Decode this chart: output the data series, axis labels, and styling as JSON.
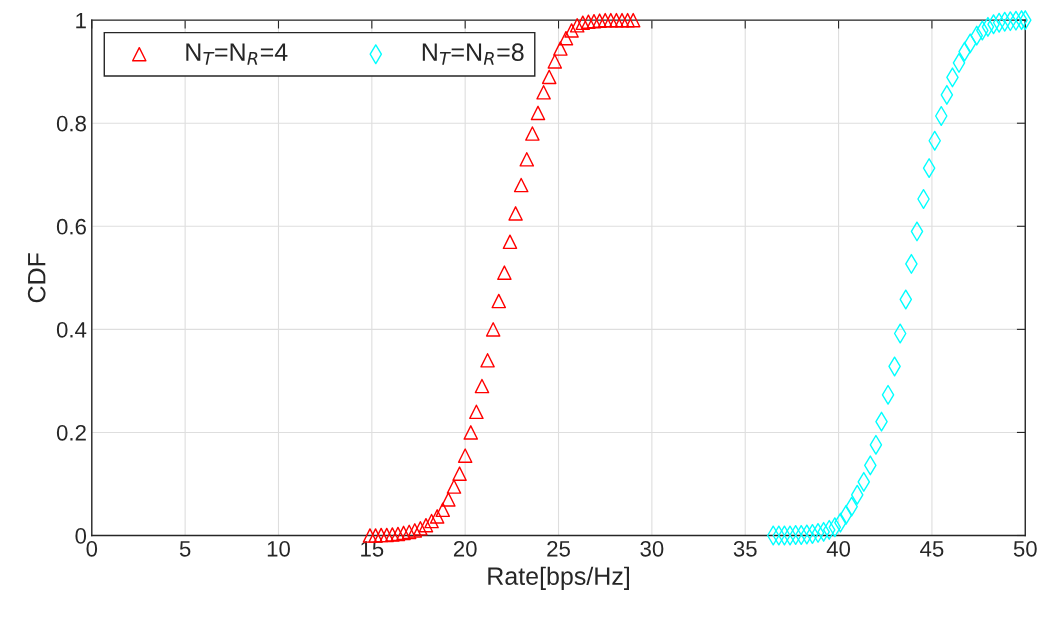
{
  "chart_data": {
    "type": "scatter",
    "xlabel": "Rate[bps/Hz]",
    "ylabel": "CDF",
    "xlim": [
      0,
      50
    ],
    "xticks": [
      0,
      5,
      10,
      15,
      20,
      25,
      30,
      35,
      40,
      45,
      50
    ],
    "ylim": [
      0,
      1
    ],
    "yticks": [
      0,
      0.2,
      0.4,
      0.6,
      0.8,
      1
    ],
    "grid": true,
    "legend": "top left",
    "series": [
      {
        "name": "N$_{T}$=N$_{R}$=4",
        "color": "#ff0000",
        "marker": "triangle",
        "x": [
          14.9,
          15.2,
          15.5,
          15.8,
          16.1,
          16.4,
          16.7,
          17.0,
          17.3,
          17.6,
          17.9,
          18.2,
          18.5,
          18.8,
          19.1,
          19.4,
          19.7,
          20.0,
          20.3,
          20.6,
          20.9,
          21.2,
          21.5,
          21.8,
          22.1,
          22.4,
          22.7,
          23.0,
          23.3,
          23.6,
          23.9,
          24.2,
          24.5,
          24.8,
          25.1,
          25.4,
          25.7,
          26.0,
          26.3,
          26.6,
          26.9,
          27.2,
          27.5,
          27.8,
          28.1,
          28.4,
          28.7,
          29.0
        ],
        "values": [
          0,
          0,
          0.001,
          0.001,
          0.002,
          0.003,
          0.005,
          0.007,
          0.01,
          0.014,
          0.02,
          0.028,
          0.037,
          0.05,
          0.07,
          0.095,
          0.12,
          0.155,
          0.2,
          0.24,
          0.29,
          0.34,
          0.4,
          0.455,
          0.51,
          0.57,
          0.625,
          0.68,
          0.73,
          0.78,
          0.82,
          0.86,
          0.89,
          0.92,
          0.945,
          0.965,
          0.98,
          0.99,
          0.995,
          0.997,
          0.998,
          0.999,
          1,
          1,
          1,
          1,
          1,
          1
        ]
      },
      {
        "name": "N$_{T}$=N$_{R}$=8",
        "color": "#00ffff",
        "marker": "diamond",
        "x": [
          36.5,
          36.8,
          37.1,
          37.4,
          37.7,
          38.0,
          38.3,
          38.6,
          38.9,
          39.2,
          39.5,
          39.8,
          40.1,
          40.4,
          40.7,
          41.0,
          41.35,
          41.7,
          42.0,
          42.3,
          42.65,
          43.0,
          43.3,
          43.6,
          43.9,
          44.2,
          44.55,
          44.85,
          45.15,
          45.5,
          45.8,
          46.1,
          46.45,
          46.75,
          47.05,
          47.4,
          47.7,
          48.0,
          48.3,
          48.6,
          48.9,
          49.2,
          49.5,
          49.8,
          50.0
        ],
        "values": [
          0,
          0,
          0,
          0,
          0.001,
          0.001,
          0.002,
          0.003,
          0.005,
          0.007,
          0.011,
          0.016,
          0.025,
          0.04,
          0.056,
          0.079,
          0.104,
          0.136,
          0.176,
          0.221,
          0.273,
          0.328,
          0.392,
          0.458,
          0.527,
          0.59,
          0.653,
          0.713,
          0.766,
          0.814,
          0.855,
          0.889,
          0.917,
          0.939,
          0.955,
          0.97,
          0.98,
          0.987,
          0.992,
          0.995,
          0.997,
          0.998,
          0.999,
          1,
          1
        ]
      }
    ]
  }
}
